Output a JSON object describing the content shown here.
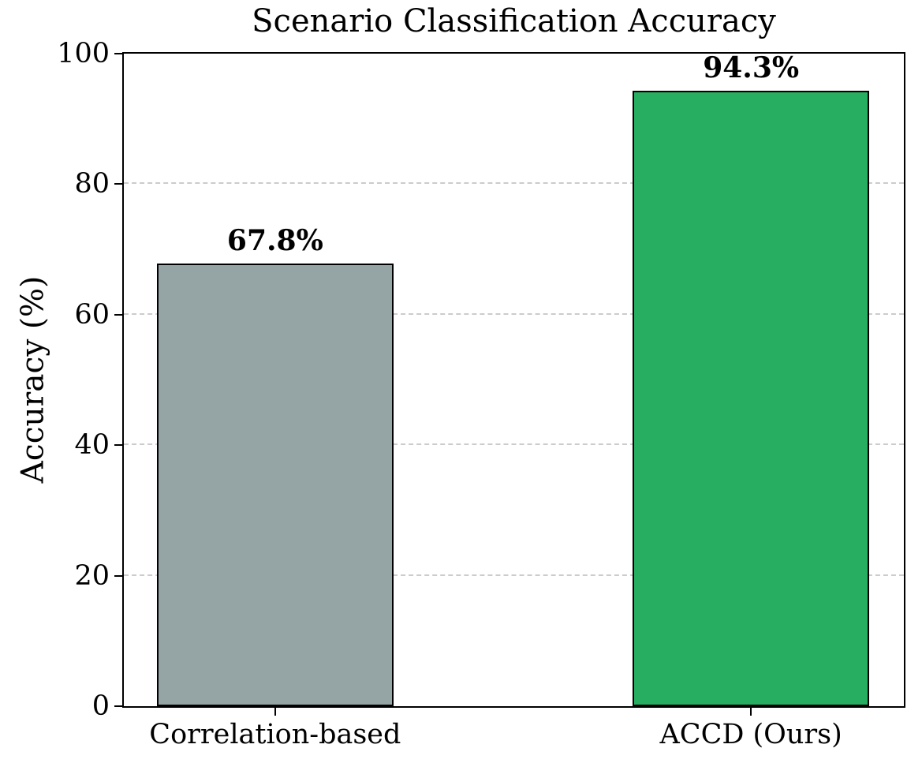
{
  "chart_data": {
    "type": "bar",
    "title": "Scenario Classification Accuracy",
    "xlabel": "",
    "ylabel": "Accuracy (%)",
    "categories": [
      "Correlation-based",
      "ACCD (Ours)"
    ],
    "values": [
      67.8,
      94.3
    ],
    "value_labels": [
      "67.8%",
      "94.3%"
    ],
    "bar_colors": [
      "#95a5a6",
      "#27ae60"
    ],
    "bar_edge_color": "#000000",
    "ylim": [
      0,
      100
    ],
    "yticks": [
      0,
      20,
      40,
      60,
      80,
      100
    ],
    "grid": {
      "axis": "y",
      "style": "dashed",
      "color": "#cccccc",
      "on_ticks": [
        20,
        40,
        60,
        80
      ]
    },
    "legend": "none"
  }
}
